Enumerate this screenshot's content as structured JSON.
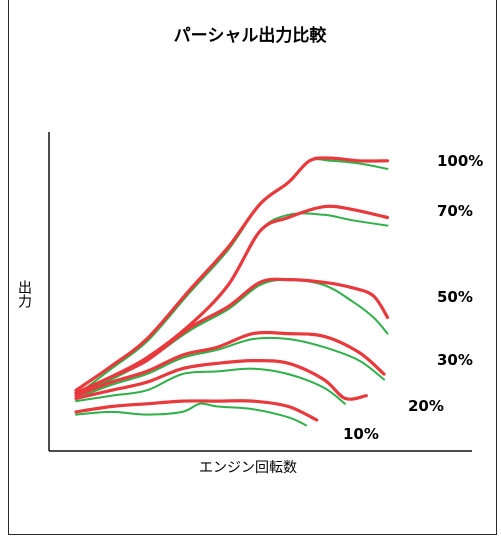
{
  "chart_data": {
    "type": "line",
    "title": "パーシャル出力比較",
    "xlabel": "エンジン回転数",
    "ylabel": "出力",
    "x_ticks_visible": false,
    "y_ticks_visible": false,
    "grid": false,
    "legend": "none",
    "xlim": [
      0,
      100
    ],
    "ylim": [
      0,
      100
    ],
    "colors": {
      "line_a": "#e8393c",
      "line_b": "#2fb04a",
      "axis": "#111111",
      "text": "#111111"
    },
    "series": [
      {
        "label": "100%",
        "red": [
          [
            0,
            11
          ],
          [
            10,
            20
          ],
          [
            20,
            30
          ],
          [
            32,
            48
          ],
          [
            43,
            64
          ],
          [
            52,
            80
          ],
          [
            60,
            88
          ],
          [
            66,
            96
          ],
          [
            72,
            97
          ],
          [
            80,
            96
          ],
          [
            88,
            96
          ]
        ],
        "green": [
          [
            0,
            9
          ],
          [
            10,
            19
          ],
          [
            20,
            29
          ],
          [
            32,
            47
          ],
          [
            43,
            63
          ],
          [
            52,
            80
          ],
          [
            60,
            88
          ],
          [
            66,
            96
          ],
          [
            72,
            96
          ],
          [
            80,
            95
          ],
          [
            88,
            93
          ]
        ]
      },
      {
        "label": "70%",
        "red": [
          [
            0,
            10
          ],
          [
            10,
            16
          ],
          [
            20,
            23
          ],
          [
            32,
            35
          ],
          [
            43,
            50
          ],
          [
            52,
            70
          ],
          [
            60,
            75
          ],
          [
            70,
            79
          ],
          [
            78,
            78
          ],
          [
            88,
            75
          ]
        ],
        "green": [
          [
            0,
            9
          ],
          [
            10,
            16
          ],
          [
            20,
            23
          ],
          [
            32,
            35
          ],
          [
            43,
            50
          ],
          [
            52,
            70
          ],
          [
            60,
            76
          ],
          [
            70,
            76
          ],
          [
            78,
            74
          ],
          [
            88,
            72
          ]
        ]
      },
      {
        "label": "50%",
        "red": [
          [
            0,
            10
          ],
          [
            10,
            16
          ],
          [
            20,
            22
          ],
          [
            32,
            34
          ],
          [
            43,
            42
          ],
          [
            52,
            51
          ],
          [
            60,
            52
          ],
          [
            70,
            51
          ],
          [
            78,
            49
          ],
          [
            84,
            46
          ],
          [
            88,
            38
          ]
        ],
        "green": [
          [
            0,
            9
          ],
          [
            10,
            15
          ],
          [
            20,
            22
          ],
          [
            32,
            33
          ],
          [
            43,
            41
          ],
          [
            52,
            50
          ],
          [
            60,
            52
          ],
          [
            70,
            50
          ],
          [
            78,
            44
          ],
          [
            84,
            38
          ],
          [
            88,
            32
          ]
        ]
      },
      {
        "label": "30%",
        "red": [
          [
            0,
            9
          ],
          [
            10,
            14
          ],
          [
            20,
            18
          ],
          [
            30,
            24
          ],
          [
            40,
            27
          ],
          [
            50,
            32
          ],
          [
            60,
            32
          ],
          [
            70,
            31
          ],
          [
            80,
            25
          ],
          [
            87,
            17
          ]
        ],
        "green": [
          [
            0,
            8
          ],
          [
            10,
            13
          ],
          [
            20,
            17
          ],
          [
            30,
            23
          ],
          [
            40,
            26
          ],
          [
            50,
            30
          ],
          [
            60,
            30
          ],
          [
            70,
            27
          ],
          [
            80,
            22
          ],
          [
            87,
            15
          ]
        ]
      },
      {
        "label": "20%",
        "red": [
          [
            0,
            8
          ],
          [
            10,
            11
          ],
          [
            20,
            14
          ],
          [
            30,
            19
          ],
          [
            40,
            21
          ],
          [
            50,
            22
          ],
          [
            60,
            21
          ],
          [
            70,
            15
          ],
          [
            76,
            8
          ],
          [
            82,
            9
          ]
        ],
        "green": [
          [
            0,
            7
          ],
          [
            10,
            9
          ],
          [
            20,
            11
          ],
          [
            30,
            17
          ],
          [
            40,
            18
          ],
          [
            50,
            19
          ],
          [
            60,
            17
          ],
          [
            70,
            12
          ],
          [
            76,
            6
          ]
        ]
      },
      {
        "label": "10%",
        "red": [
          [
            0,
            3
          ],
          [
            10,
            5
          ],
          [
            20,
            6
          ],
          [
            30,
            7
          ],
          [
            40,
            7
          ],
          [
            50,
            7
          ],
          [
            60,
            5
          ],
          [
            68,
            0
          ]
        ],
        "green": [
          [
            0,
            2
          ],
          [
            10,
            3
          ],
          [
            20,
            2
          ],
          [
            30,
            3
          ],
          [
            35,
            6
          ],
          [
            40,
            5
          ],
          [
            50,
            4
          ],
          [
            60,
            1
          ],
          [
            65,
            -2
          ]
        ]
      }
    ]
  }
}
